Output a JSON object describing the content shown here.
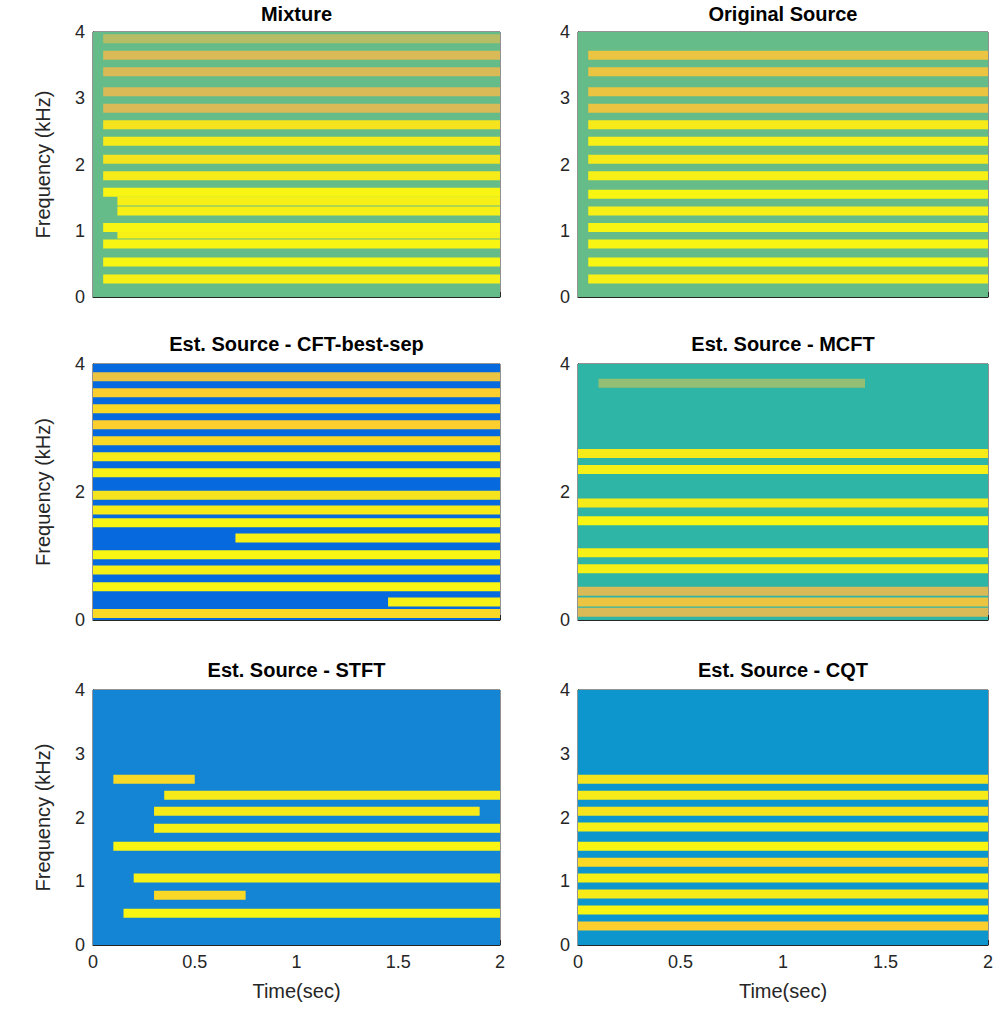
{
  "chart_data": [
    {
      "type": "spectrogram",
      "title": "Mixture",
      "ylabel": "Frequency (kHz)",
      "xlim": [
        0,
        2
      ],
      "xticks": [
        0,
        0.5,
        1,
        1.5,
        2
      ],
      "ylim": [
        0,
        4
      ],
      "yticks": [
        0,
        1,
        2,
        3,
        4
      ],
      "tick_labels": "y",
      "grid": false,
      "clim": [
        0,
        1
      ],
      "background": 0.45,
      "bands": [
        {
          "freq": 0.27,
          "start": 0.05,
          "end": 2,
          "level": 0.9
        },
        {
          "freq": 0.53,
          "start": 0.05,
          "end": 2,
          "level": 0.95
        },
        {
          "freq": 0.8,
          "start": 0.05,
          "end": 2,
          "level": 0.95
        },
        {
          "freq": 0.95,
          "start": 0.12,
          "end": 2,
          "level": 0.9
        },
        {
          "freq": 1.05,
          "start": 0.05,
          "end": 2,
          "level": 0.95
        },
        {
          "freq": 1.3,
          "start": 0.12,
          "end": 2,
          "level": 0.9
        },
        {
          "freq": 1.45,
          "start": 0.12,
          "end": 2,
          "level": 0.9
        },
        {
          "freq": 1.58,
          "start": 0.05,
          "end": 2,
          "level": 0.95
        },
        {
          "freq": 1.83,
          "start": 0.05,
          "end": 2,
          "level": 0.85
        },
        {
          "freq": 2.08,
          "start": 0.05,
          "end": 2,
          "level": 0.8
        },
        {
          "freq": 2.35,
          "start": 0.05,
          "end": 2,
          "level": 0.85
        },
        {
          "freq": 2.6,
          "start": 0.05,
          "end": 2,
          "level": 0.8
        },
        {
          "freq": 2.85,
          "start": 0.05,
          "end": 2,
          "level": 0.6
        },
        {
          "freq": 3.1,
          "start": 0.05,
          "end": 2,
          "level": 0.6
        },
        {
          "freq": 3.4,
          "start": 0.05,
          "end": 2,
          "level": 0.6
        },
        {
          "freq": 3.65,
          "start": 0.05,
          "end": 2,
          "level": 0.6
        },
        {
          "freq": 3.9,
          "start": 0.05,
          "end": 2,
          "level": 0.55
        }
      ]
    },
    {
      "type": "spectrogram",
      "title": "Original Source",
      "xlim": [
        0,
        2
      ],
      "xticks": [
        0,
        0.5,
        1,
        1.5,
        2
      ],
      "ylim": [
        0,
        4
      ],
      "yticks": [
        0,
        1,
        2,
        3,
        4
      ],
      "tick_labels": "y",
      "grid": false,
      "clim": [
        0,
        1
      ],
      "background": 0.45,
      "bands": [
        {
          "freq": 0.27,
          "start": 0.05,
          "end": 2,
          "level": 0.9
        },
        {
          "freq": 0.53,
          "start": 0.05,
          "end": 2,
          "level": 0.95
        },
        {
          "freq": 0.8,
          "start": 0.05,
          "end": 2,
          "level": 0.95
        },
        {
          "freq": 1.05,
          "start": 0.05,
          "end": 2,
          "level": 0.95
        },
        {
          "freq": 1.3,
          "start": 0.05,
          "end": 2,
          "level": 0.9
        },
        {
          "freq": 1.55,
          "start": 0.05,
          "end": 2,
          "level": 0.95
        },
        {
          "freq": 1.83,
          "start": 0.05,
          "end": 2,
          "level": 0.9
        },
        {
          "freq": 2.08,
          "start": 0.05,
          "end": 2,
          "level": 0.85
        },
        {
          "freq": 2.35,
          "start": 0.05,
          "end": 2,
          "level": 0.9
        },
        {
          "freq": 2.6,
          "start": 0.05,
          "end": 2,
          "level": 0.85
        },
        {
          "freq": 2.85,
          "start": 0.05,
          "end": 2,
          "level": 0.65
        },
        {
          "freq": 3.1,
          "start": 0.05,
          "end": 2,
          "level": 0.65
        },
        {
          "freq": 3.4,
          "start": 0.05,
          "end": 2,
          "level": 0.65
        },
        {
          "freq": 3.65,
          "start": 0.05,
          "end": 2,
          "level": 0.65
        }
      ]
    },
    {
      "type": "spectrogram",
      "title": "Est. Source - CFT-best-sep",
      "ylabel": "Frequency (kHz)",
      "xlim": [
        0,
        2
      ],
      "xticks": [
        0,
        0.5,
        1,
        1.5,
        2
      ],
      "ylim": [
        0,
        4
      ],
      "yticks": [
        0,
        2,
        4
      ],
      "tick_labels": "y",
      "grid": false,
      "clim": [
        0,
        1
      ],
      "background": 0.12,
      "bands": [
        {
          "freq": 0.1,
          "start": 0,
          "end": 2,
          "level": 0.75
        },
        {
          "freq": 0.28,
          "start": 1.45,
          "end": 2,
          "level": 0.9
        },
        {
          "freq": 0.52,
          "start": 0,
          "end": 2,
          "level": 0.95
        },
        {
          "freq": 0.78,
          "start": 0,
          "end": 2,
          "level": 0.9
        },
        {
          "freq": 1.02,
          "start": 0,
          "end": 2,
          "level": 0.95
        },
        {
          "freq": 1.28,
          "start": 0.7,
          "end": 2,
          "level": 0.9
        },
        {
          "freq": 1.52,
          "start": 0,
          "end": 2,
          "level": 0.95
        },
        {
          "freq": 1.72,
          "start": 0,
          "end": 2,
          "level": 0.85
        },
        {
          "freq": 1.95,
          "start": 0,
          "end": 2,
          "level": 0.8
        },
        {
          "freq": 2.3,
          "start": 0,
          "end": 2,
          "level": 0.9
        },
        {
          "freq": 2.55,
          "start": 0,
          "end": 2,
          "level": 0.85
        },
        {
          "freq": 2.8,
          "start": 0,
          "end": 2,
          "level": 0.75
        },
        {
          "freq": 3.05,
          "start": 0,
          "end": 2,
          "level": 0.7
        },
        {
          "freq": 3.3,
          "start": 0,
          "end": 2,
          "level": 0.75
        },
        {
          "freq": 3.55,
          "start": 0,
          "end": 2,
          "level": 0.7
        },
        {
          "freq": 3.8,
          "start": 0,
          "end": 2,
          "level": 0.65
        }
      ]
    },
    {
      "type": "spectrogram",
      "title": "Est. Source - MCFT",
      "xlim": [
        0,
        2
      ],
      "xticks": [
        0,
        0.5,
        1,
        1.5,
        2
      ],
      "ylim": [
        0,
        4
      ],
      "yticks": [
        0,
        2,
        4
      ],
      "tick_labels": "y",
      "grid": false,
      "clim": [
        0,
        1
      ],
      "background": 0.38,
      "bands": [
        {
          "freq": 0.12,
          "start": 0,
          "end": 2,
          "level": 0.6
        },
        {
          "freq": 0.28,
          "start": 0,
          "end": 2,
          "level": 0.65
        },
        {
          "freq": 0.45,
          "start": 0,
          "end": 2,
          "level": 0.6
        },
        {
          "freq": 0.8,
          "start": 0,
          "end": 2,
          "level": 0.9
        },
        {
          "freq": 1.05,
          "start": 0,
          "end": 2,
          "level": 0.9
        },
        {
          "freq": 1.55,
          "start": 0,
          "end": 2,
          "level": 0.95
        },
        {
          "freq": 1.83,
          "start": 0,
          "end": 2,
          "level": 0.85
        },
        {
          "freq": 2.35,
          "start": 0,
          "end": 2,
          "level": 0.9
        },
        {
          "freq": 2.6,
          "start": 0,
          "end": 2,
          "level": 0.85
        },
        {
          "freq": 3.7,
          "start": 0.1,
          "end": 1.4,
          "level": 0.5
        }
      ]
    },
    {
      "type": "spectrogram",
      "title": "Est. Source - STFT",
      "xlabel": "Time(sec)",
      "ylabel": "Frequency (kHz)",
      "xlim": [
        0,
        2
      ],
      "xticks": [
        0,
        0.5,
        1,
        1.5,
        2
      ],
      "ylim": [
        0,
        4
      ],
      "yticks": [
        0,
        1,
        2,
        3,
        4
      ],
      "grid": false,
      "clim": [
        0,
        1
      ],
      "background": 0.2,
      "bands": [
        {
          "freq": 0.5,
          "start": 0.15,
          "end": 2,
          "level": 0.95
        },
        {
          "freq": 0.78,
          "start": 0.3,
          "end": 0.75,
          "level": 0.75
        },
        {
          "freq": 1.05,
          "start": 0.2,
          "end": 2,
          "level": 0.9
        },
        {
          "freq": 1.55,
          "start": 0.1,
          "end": 2,
          "level": 0.95
        },
        {
          "freq": 1.83,
          "start": 0.3,
          "end": 2,
          "level": 0.9
        },
        {
          "freq": 2.1,
          "start": 0.3,
          "end": 1.9,
          "level": 0.85
        },
        {
          "freq": 2.35,
          "start": 0.35,
          "end": 2,
          "level": 0.85
        },
        {
          "freq": 2.6,
          "start": 0.1,
          "end": 0.5,
          "level": 0.75
        }
      ]
    },
    {
      "type": "spectrogram",
      "title": "Est. Source - CQT",
      "xlabel": "Time(sec)",
      "xlim": [
        0,
        2
      ],
      "xticks": [
        0,
        0.5,
        1,
        1.5,
        2
      ],
      "ylim": [
        0,
        4
      ],
      "yticks": [
        0,
        1,
        2,
        3,
        4
      ],
      "grid": false,
      "clim": [
        0,
        1
      ],
      "background": 0.25,
      "bands": [
        {
          "freq": 0.3,
          "start": 0,
          "end": 2,
          "level": 0.7
        },
        {
          "freq": 0.55,
          "start": 0,
          "end": 2,
          "level": 0.95
        },
        {
          "freq": 0.8,
          "start": 0,
          "end": 2,
          "level": 0.85
        },
        {
          "freq": 1.05,
          "start": 0,
          "end": 2,
          "level": 0.9
        },
        {
          "freq": 1.3,
          "start": 0,
          "end": 2,
          "level": 0.75
        },
        {
          "freq": 1.55,
          "start": 0,
          "end": 2,
          "level": 0.95
        },
        {
          "freq": 1.85,
          "start": 0,
          "end": 2,
          "level": 0.9
        },
        {
          "freq": 2.1,
          "start": 0,
          "end": 2,
          "level": 0.8
        },
        {
          "freq": 2.35,
          "start": 0,
          "end": 2,
          "level": 0.85
        },
        {
          "freq": 2.6,
          "start": 0,
          "end": 2,
          "level": 0.8
        }
      ]
    }
  ]
}
